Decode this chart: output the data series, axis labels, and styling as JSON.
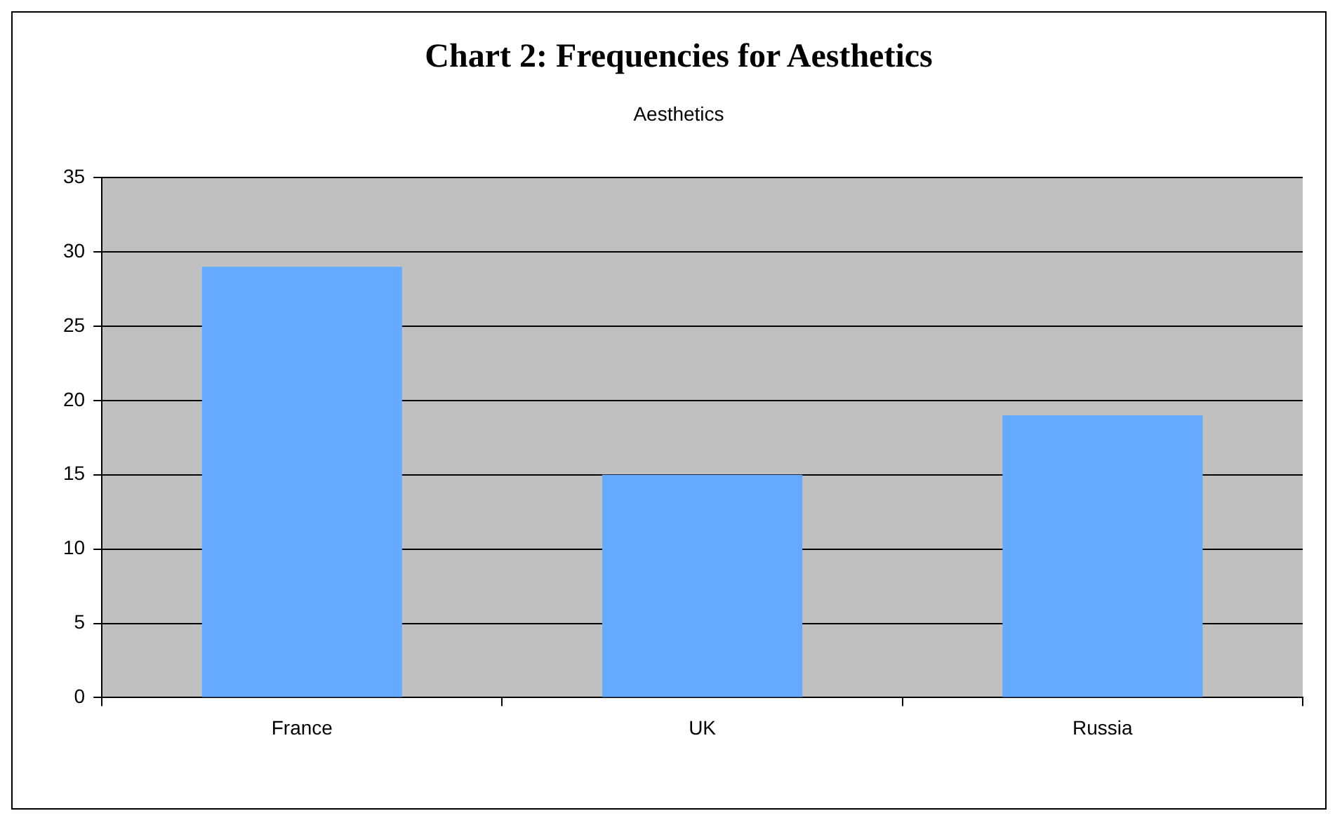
{
  "chart_data": {
    "type": "bar",
    "title": "Chart 2: Frequencies for Aesthetics",
    "subtitle": "Aesthetics",
    "categories": [
      "France",
      "UK",
      "Russia"
    ],
    "values": [
      29,
      15,
      19
    ],
    "color": "#66aaff",
    "ylim": [
      0,
      35
    ],
    "yticks": [
      0,
      5,
      10,
      15,
      20,
      25,
      30,
      35
    ],
    "grid": "y",
    "legend": false
  }
}
